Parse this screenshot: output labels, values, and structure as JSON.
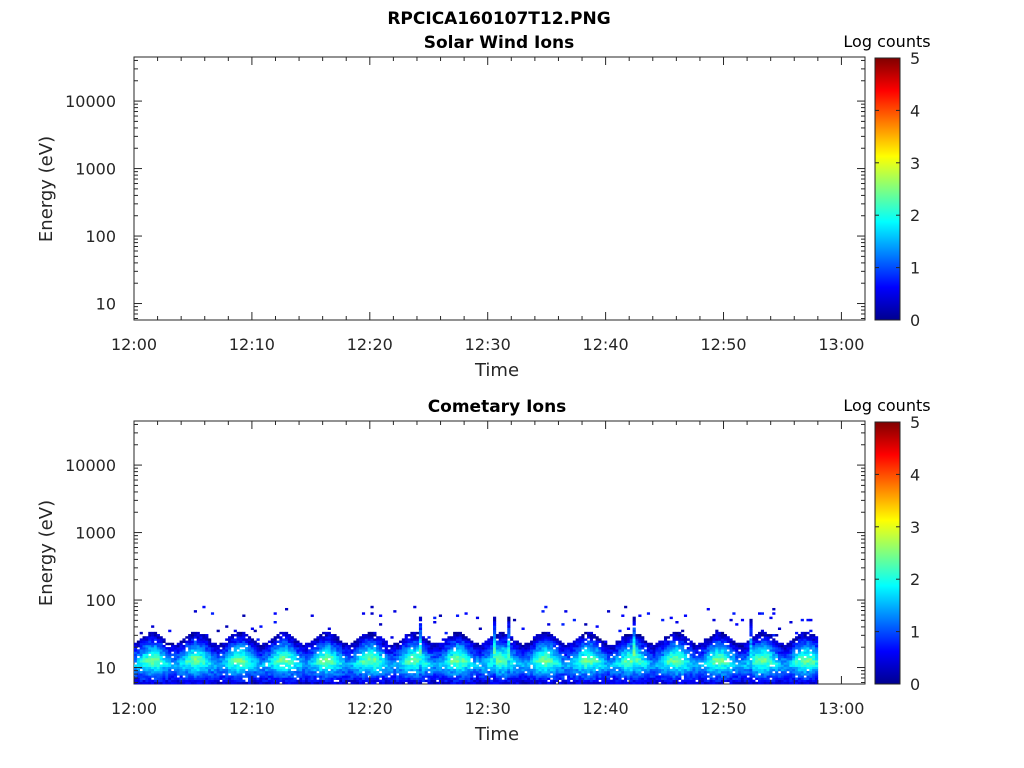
{
  "figure": {
    "title": "RPCICA160107T12.PNG"
  },
  "chart_data": [
    {
      "type": "heatmap",
      "title": "Solar Wind Ions",
      "xlabel": "Time",
      "ylabel": "Energy (eV)",
      "x_ticks": [
        "12:00",
        "12:10",
        "12:20",
        "12:30",
        "12:40",
        "12:50",
        "13:00"
      ],
      "xlim": [
        "12:00",
        "13:02"
      ],
      "y_scale": "log",
      "y_ticks": [
        10,
        100,
        1000,
        10000
      ],
      "y_tick_labels": [
        "10",
        "100",
        "1000",
        "10000"
      ],
      "ylim": [
        5.7,
        45000
      ],
      "colorbar": {
        "label": "Log counts",
        "ticks": [
          "0",
          "1",
          "2",
          "3",
          "4",
          "5"
        ],
        "range": [
          0,
          5
        ],
        "colormap": "jet"
      },
      "data_extent": null
    },
    {
      "type": "heatmap",
      "title": "Cometary Ions",
      "xlabel": "Time",
      "ylabel": "Energy (eV)",
      "x_ticks": [
        "12:00",
        "12:10",
        "12:20",
        "12:30",
        "12:40",
        "12:50",
        "13:00"
      ],
      "xlim": [
        "12:00",
        "13:02"
      ],
      "y_scale": "log",
      "y_ticks": [
        10,
        100,
        1000,
        10000
      ],
      "y_tick_labels": [
        "10",
        "100",
        "1000",
        "10000"
      ],
      "ylim": [
        5.7,
        45000
      ],
      "colorbar": {
        "label": "Log counts",
        "ticks": [
          "0",
          "1",
          "2",
          "3",
          "4",
          "5"
        ],
        "range": [
          0,
          5
        ],
        "colormap": "jet"
      },
      "data_extent": {
        "time_range": [
          "12:00",
          "12:58"
        ],
        "main_band_energy_eV": [
          6,
          28
        ],
        "peak_log_counts": 2.5,
        "sparse_counts_up_to_energy_eV": 80
      }
    }
  ]
}
